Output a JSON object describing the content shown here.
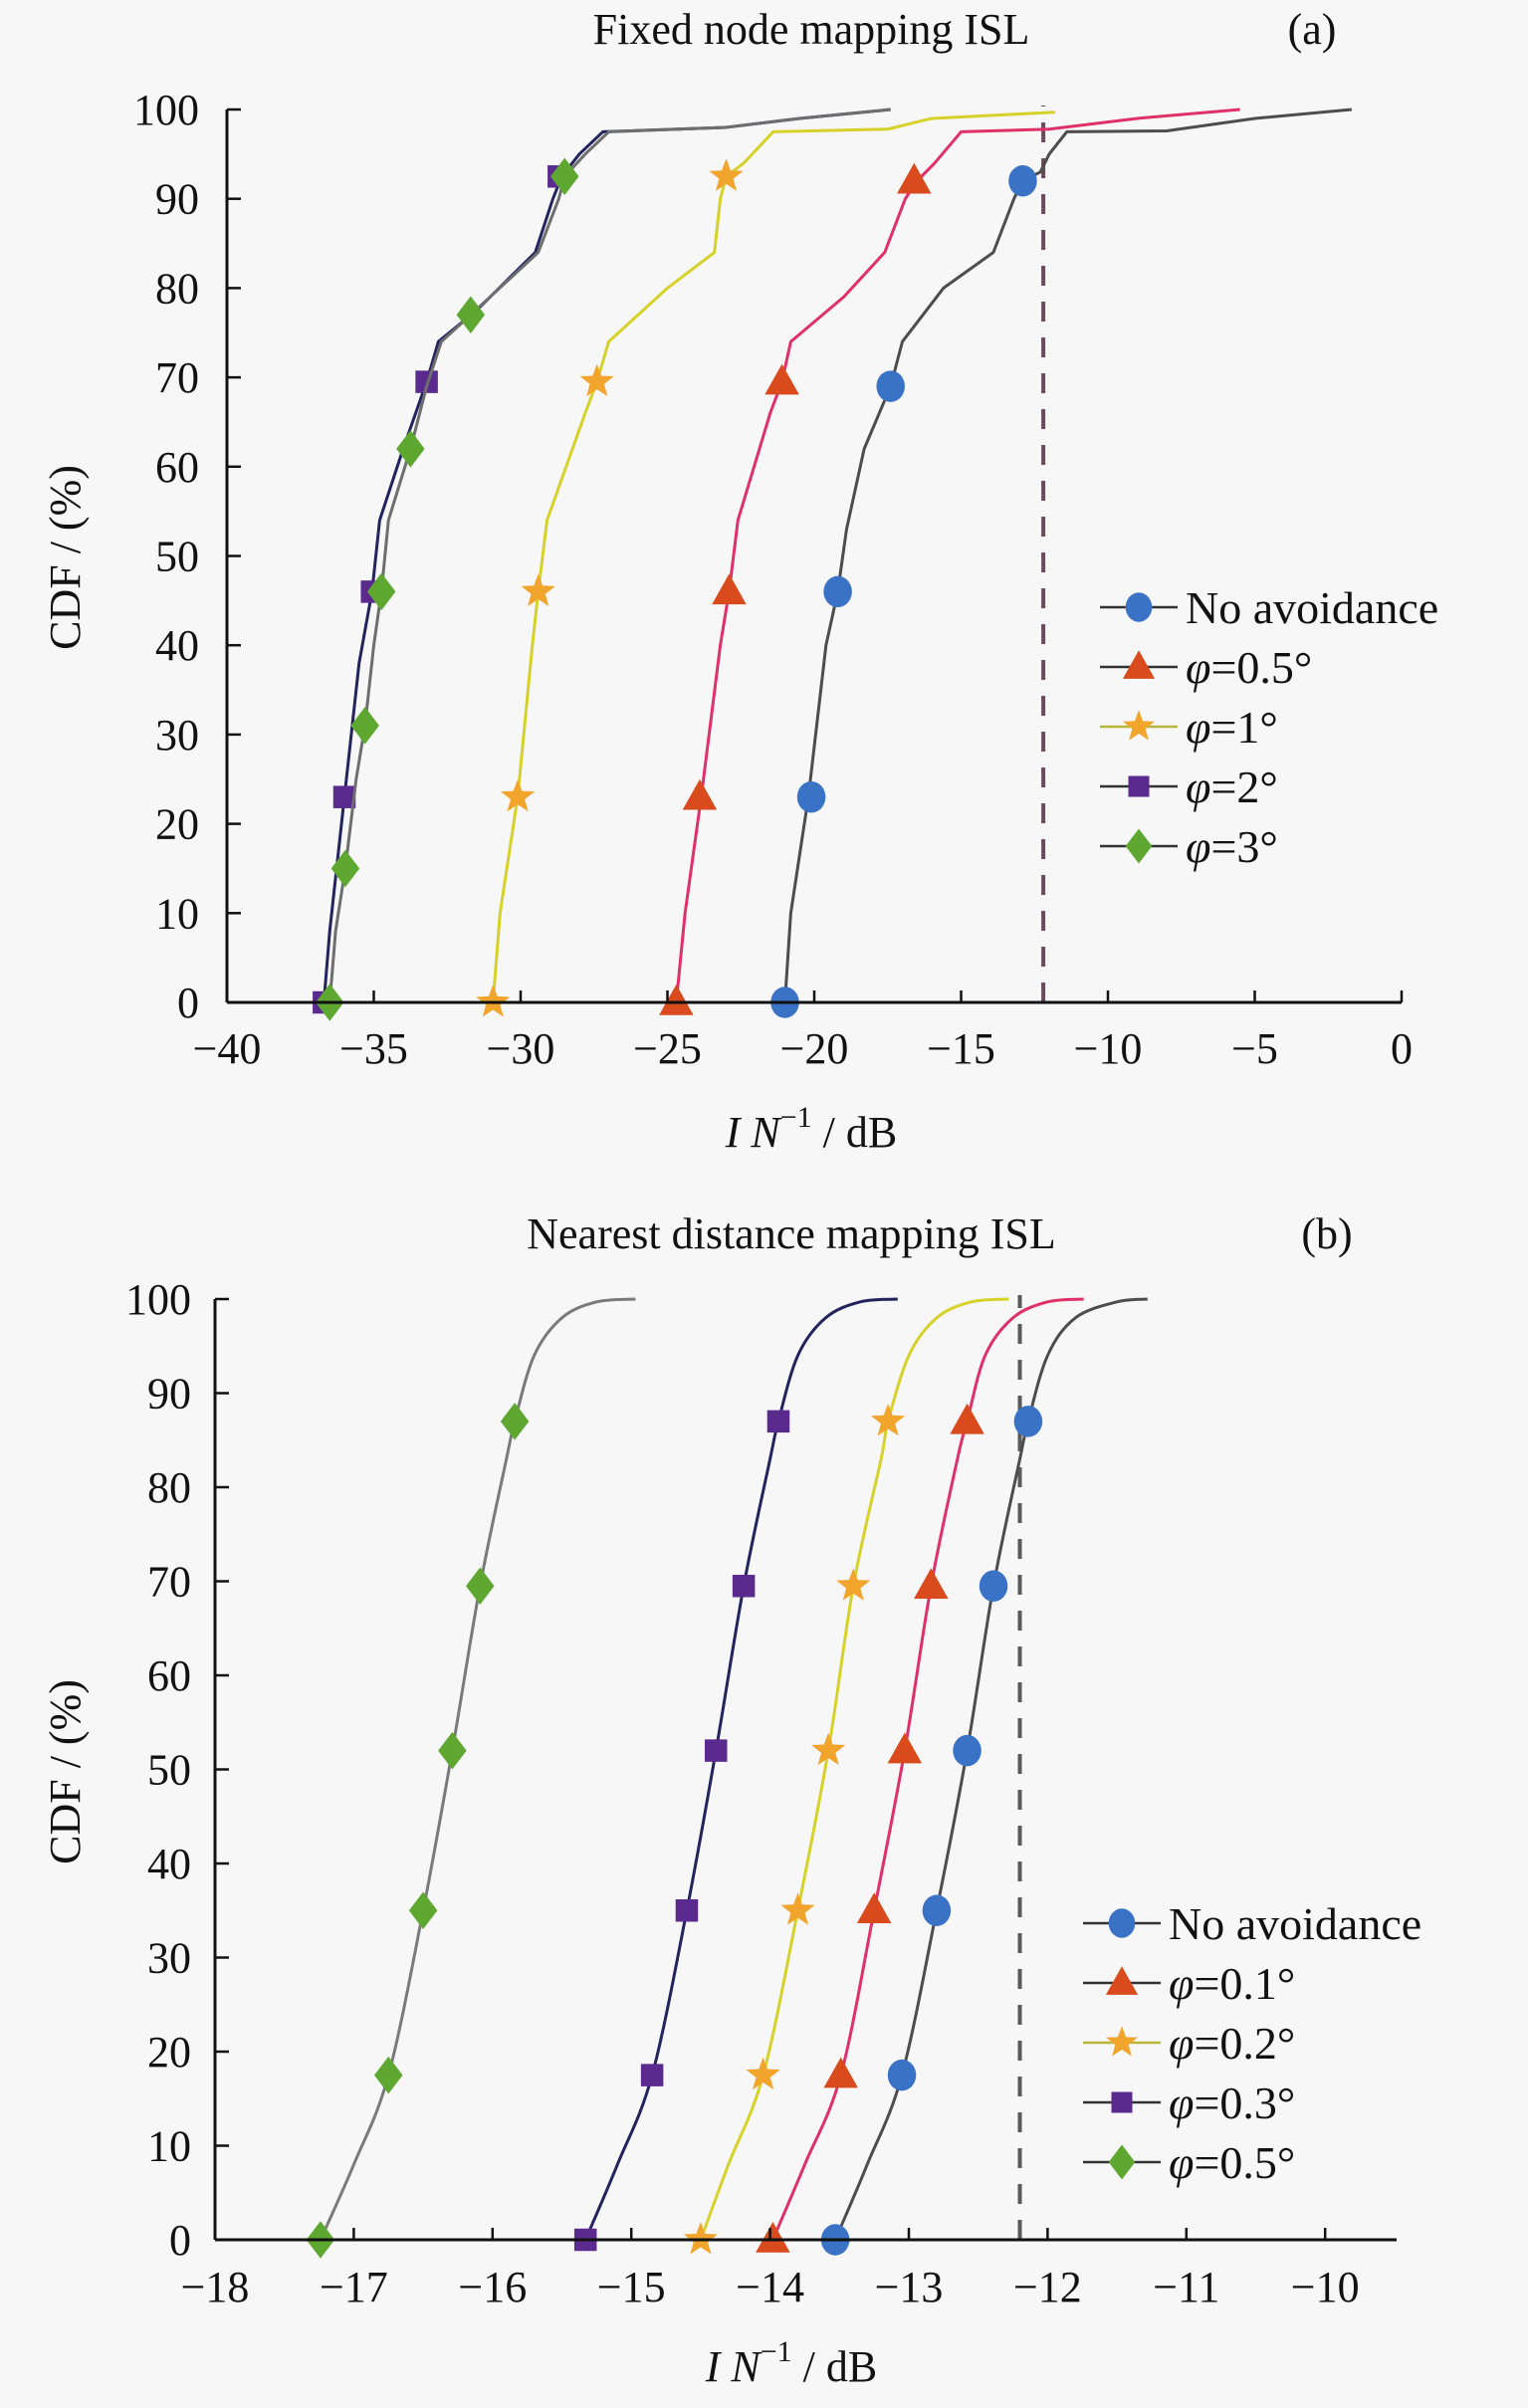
{
  "chart_data": [
    {
      "id": "a",
      "type": "line",
      "title": "Fixed node mapping ISL",
      "panel_tag": "(a)",
      "xlabel": "I N^-1 / dB",
      "xlabel_parts": {
        "main": "I N",
        "sup": "−1",
        "unit": " / dB"
      },
      "ylabel": "CDF / (%)",
      "xlim": [
        -40,
        0
      ],
      "ylim": [
        0,
        100
      ],
      "xticks": [
        -40,
        -35,
        -30,
        -25,
        -20,
        -15,
        -10,
        -5,
        0
      ],
      "xtick_labels": [
        "−40",
        "−35",
        "−30",
        "−25",
        "−20",
        "−15",
        "−10",
        "−5",
        "0"
      ],
      "yticks": [
        0,
        10,
        20,
        30,
        40,
        50,
        60,
        70,
        80,
        90,
        100
      ],
      "ytick_labels": [
        "0",
        "10",
        "20",
        "30",
        "40",
        "50",
        "60",
        "70",
        "80",
        "90",
        "100"
      ],
      "grid": false,
      "legend_position": "right-middle",
      "reference_line": {
        "x": -12.2,
        "style": "dashed",
        "color": "#6b4a5a"
      },
      "series": [
        {
          "name": "No avoidance",
          "marker": "circle",
          "line_color": "#4d4d4d",
          "marker_color": "#3a72c6",
          "points": [
            [
              -21.0,
              0
            ],
            [
              -20.8,
              10
            ],
            [
              -20.2,
              23
            ],
            [
              -19.6,
              40
            ],
            [
              -19.2,
              46
            ],
            [
              -18.9,
              53
            ],
            [
              -18.3,
              62
            ],
            [
              -17.4,
              69
            ],
            [
              -17.0,
              74
            ],
            [
              -15.6,
              80
            ],
            [
              -13.9,
              84
            ],
            [
              -13.2,
              90
            ],
            [
              -12.9,
              92
            ],
            [
              -12.3,
              93
            ],
            [
              -12.0,
              95
            ],
            [
              -11.4,
              97.5
            ],
            [
              -8.0,
              97.6
            ],
            [
              -5.0,
              99
            ],
            [
              -1.7,
              100
            ]
          ],
          "markers": [
            [
              -21.0,
              0
            ],
            [
              -20.1,
              23
            ],
            [
              -19.2,
              46
            ],
            [
              -17.4,
              69
            ],
            [
              -12.9,
              92
            ]
          ]
        },
        {
          "name": "φ=0.5°",
          "marker": "triangle",
          "line_color": "#e0306a",
          "marker_color": "#d94a1c",
          "points": [
            [
              -24.7,
              0
            ],
            [
              -24.4,
              10
            ],
            [
              -23.85,
              23
            ],
            [
              -23.2,
              40
            ],
            [
              -22.9,
              46
            ],
            [
              -22.6,
              54
            ],
            [
              -21.5,
              66
            ],
            [
              -21.1,
              69.5
            ],
            [
              -20.8,
              74
            ],
            [
              -19.0,
              79
            ],
            [
              -17.6,
              84
            ],
            [
              -16.9,
              90
            ],
            [
              -16.5,
              92
            ],
            [
              -15.9,
              94
            ],
            [
              -15.0,
              97.5
            ],
            [
              -12.0,
              97.8
            ],
            [
              -9.0,
              99
            ],
            [
              -5.5,
              100
            ]
          ],
          "markers": [
            [
              -24.7,
              0
            ],
            [
              -23.9,
              23
            ],
            [
              -22.9,
              46
            ],
            [
              -21.1,
              69.5
            ],
            [
              -16.6,
              92
            ]
          ]
        },
        {
          "name": "φ=1°",
          "marker": "star",
          "line_color": "#d6d22a",
          "marker_color": "#f2a52c",
          "points": [
            [
              -30.94,
              0
            ],
            [
              -30.7,
              10
            ],
            [
              -30.1,
              23
            ],
            [
              -29.6,
              40
            ],
            [
              -29.4,
              46
            ],
            [
              -29.1,
              54
            ],
            [
              -27.8,
              66
            ],
            [
              -27.4,
              69.5
            ],
            [
              -27.0,
              74
            ],
            [
              -25.0,
              80
            ],
            [
              -23.4,
              84
            ],
            [
              -23.2,
              90
            ],
            [
              -23.0,
              92.5
            ],
            [
              -22.4,
              94
            ],
            [
              -21.4,
              97.5
            ],
            [
              -17.5,
              97.8
            ],
            [
              -16.0,
              99
            ],
            [
              -11.8,
              99.7
            ]
          ],
          "markers": [
            [
              -30.94,
              0
            ],
            [
              -30.1,
              23
            ],
            [
              -29.4,
              46
            ],
            [
              -27.4,
              69.5
            ],
            [
              -23.0,
              92.5
            ]
          ]
        },
        {
          "name": "φ=2°",
          "marker": "square",
          "line_color": "#23235e",
          "marker_color": "#5a2a8e",
          "points": [
            [
              -36.7,
              0
            ],
            [
              -36.5,
              8
            ],
            [
              -36.0,
              23
            ],
            [
              -35.5,
              38
            ],
            [
              -35.06,
              46
            ],
            [
              -34.8,
              54
            ],
            [
              -34.0,
              62
            ],
            [
              -33.2,
              69.5
            ],
            [
              -32.8,
              74
            ],
            [
              -31.5,
              77.5
            ],
            [
              -29.5,
              84
            ],
            [
              -28.9,
              90
            ],
            [
              -28.6,
              92.5
            ],
            [
              -28.0,
              95
            ],
            [
              -27.2,
              97.5
            ],
            [
              -23.0,
              98
            ],
            [
              -20.5,
              99
            ],
            [
              -17.4,
              100
            ]
          ],
          "markers": [
            [
              -36.7,
              0
            ],
            [
              -36.0,
              23
            ],
            [
              -35.06,
              46
            ],
            [
              -33.2,
              69.5
            ],
            [
              -28.7,
              92.5
            ]
          ]
        },
        {
          "name": "φ=3°",
          "marker": "diamond",
          "line_color": "#6e6e6e",
          "marker_color": "#5ea832",
          "points": [
            [
              -36.5,
              0
            ],
            [
              -36.3,
              8
            ],
            [
              -35.97,
              15
            ],
            [
              -35.6,
              25
            ],
            [
              -35.3,
              31
            ],
            [
              -35.0,
              40
            ],
            [
              -34.74,
              46
            ],
            [
              -34.5,
              54
            ],
            [
              -33.75,
              62
            ],
            [
              -33.2,
              69
            ],
            [
              -32.7,
              74
            ],
            [
              -31.7,
              77
            ],
            [
              -29.4,
              84
            ],
            [
              -28.7,
              90
            ],
            [
              -28.5,
              92.5
            ],
            [
              -27.8,
              95
            ],
            [
              -27.0,
              97.5
            ],
            [
              -23.0,
              98
            ],
            [
              -20.5,
              99
            ],
            [
              -17.4,
              100
            ]
          ],
          "markers": [
            [
              -36.5,
              0
            ],
            [
              -35.97,
              15
            ],
            [
              -35.3,
              31
            ],
            [
              -34.74,
              46
            ],
            [
              -33.75,
              62
            ],
            [
              -31.7,
              77
            ],
            [
              -28.5,
              92.5
            ]
          ]
        }
      ]
    },
    {
      "id": "b",
      "type": "line",
      "title": "Nearest distance mapping ISL",
      "panel_tag": "(b)",
      "xlabel": "I N^-1 / dB",
      "xlabel_parts": {
        "main": "I N",
        "sup": "−1",
        "unit": " / dB"
      },
      "ylabel": "CDF / (%)",
      "xlim": [
        -18,
        -9.5
      ],
      "ylim": [
        0,
        100
      ],
      "xticks": [
        -18,
        -17,
        -16,
        -15,
        -14,
        -13,
        -12,
        -11,
        -10
      ],
      "xtick_labels": [
        "−18",
        "−17",
        "−16",
        "−15",
        "−14",
        "−13",
        "−12",
        "−11",
        "−10"
      ],
      "yticks": [
        0,
        10,
        20,
        30,
        40,
        50,
        60,
        70,
        80,
        90,
        100
      ],
      "ytick_labels": [
        "0",
        "10",
        "20",
        "30",
        "40",
        "50",
        "60",
        "70",
        "80",
        "90",
        "100"
      ],
      "grid": false,
      "legend_position": "bottom-right",
      "reference_line": {
        "x": -12.2,
        "style": "dashed",
        "color": "#5a5a5a"
      },
      "series": [
        {
          "name": "No avoidance",
          "marker": "circle",
          "line_color": "#4d4d4d",
          "marker_color": "#3a72c6",
          "points": [
            [
              -13.53,
              0
            ],
            [
              -13.3,
              8
            ],
            [
              -13.05,
              17.5
            ],
            [
              -12.8,
              35
            ],
            [
              -12.58,
              52
            ],
            [
              -12.39,
              69.5
            ],
            [
              -12.2,
              83
            ],
            [
              -12.14,
              87
            ],
            [
              -12.0,
              94
            ],
            [
              -11.8,
              98
            ],
            [
              -11.5,
              99.7
            ],
            [
              -11.28,
              100
            ]
          ],
          "markers": [
            [
              -13.53,
              0
            ],
            [
              -13.05,
              17.5
            ],
            [
              -12.8,
              35
            ],
            [
              -12.58,
              52
            ],
            [
              -12.39,
              69.5
            ],
            [
              -12.14,
              87
            ]
          ]
        },
        {
          "name": "φ=0.1°",
          "marker": "triangle",
          "line_color": "#e0306a",
          "marker_color": "#d94a1c",
          "points": [
            [
              -13.98,
              0
            ],
            [
              -13.75,
              8
            ],
            [
              -13.49,
              17.5
            ],
            [
              -13.25,
              35
            ],
            [
              -13.03,
              52
            ],
            [
              -12.84,
              69.5
            ],
            [
              -12.65,
              83
            ],
            [
              -12.58,
              87
            ],
            [
              -12.45,
              94
            ],
            [
              -12.25,
              98
            ],
            [
              -12.0,
              99.7
            ],
            [
              -11.74,
              100
            ]
          ],
          "markers": [
            [
              -13.98,
              0
            ],
            [
              -13.49,
              17.5
            ],
            [
              -13.25,
              35
            ],
            [
              -13.03,
              52
            ],
            [
              -12.84,
              69.5
            ],
            [
              -12.58,
              87
            ]
          ]
        },
        {
          "name": "φ=0.2°",
          "marker": "star",
          "line_color": "#d6d22a",
          "marker_color": "#f2a52c",
          "points": [
            [
              -14.5,
              0
            ],
            [
              -14.3,
              8
            ],
            [
              -14.05,
              17.5
            ],
            [
              -13.8,
              35
            ],
            [
              -13.58,
              52
            ],
            [
              -13.4,
              69.5
            ],
            [
              -13.2,
              83
            ],
            [
              -13.15,
              87
            ],
            [
              -13.0,
              94
            ],
            [
              -12.8,
              98
            ],
            [
              -12.55,
              99.7
            ],
            [
              -12.28,
              100
            ]
          ],
          "markers": [
            [
              -14.5,
              0
            ],
            [
              -14.05,
              17.5
            ],
            [
              -13.8,
              35
            ],
            [
              -13.58,
              52
            ],
            [
              -13.4,
              69.5
            ],
            [
              -13.15,
              87
            ]
          ]
        },
        {
          "name": "φ=0.3°",
          "marker": "square",
          "line_color": "#23235e",
          "marker_color": "#5a2a8e",
          "points": [
            [
              -15.33,
              0
            ],
            [
              -15.1,
              8
            ],
            [
              -14.85,
              17.5
            ],
            [
              -14.6,
              35
            ],
            [
              -14.39,
              52
            ],
            [
              -14.19,
              69.5
            ],
            [
              -14.0,
              83
            ],
            [
              -13.94,
              87
            ],
            [
              -13.8,
              94
            ],
            [
              -13.6,
              98
            ],
            [
              -13.35,
              99.7
            ],
            [
              -13.08,
              100
            ]
          ],
          "markers": [
            [
              -15.33,
              0
            ],
            [
              -14.85,
              17.5
            ],
            [
              -14.6,
              35
            ],
            [
              -14.39,
              52
            ],
            [
              -14.19,
              69.5
            ],
            [
              -13.94,
              87
            ]
          ]
        },
        {
          "name": "φ=0.5°",
          "marker": "diamond",
          "line_color": "#7a7a7a",
          "marker_color": "#5ea832",
          "points": [
            [
              -17.24,
              0
            ],
            [
              -17.0,
              8
            ],
            [
              -16.75,
              17.5
            ],
            [
              -16.5,
              35
            ],
            [
              -16.29,
              52
            ],
            [
              -16.09,
              69.5
            ],
            [
              -15.9,
              83
            ],
            [
              -15.84,
              87
            ],
            [
              -15.7,
              94
            ],
            [
              -15.5,
              98
            ],
            [
              -15.25,
              99.7
            ],
            [
              -14.97,
              100
            ]
          ],
          "markers": [
            [
              -17.24,
              0
            ],
            [
              -16.75,
              17.5
            ],
            [
              -16.5,
              35
            ],
            [
              -16.29,
              52
            ],
            [
              -16.09,
              69.5
            ],
            [
              -15.84,
              87
            ]
          ]
        }
      ]
    }
  ]
}
